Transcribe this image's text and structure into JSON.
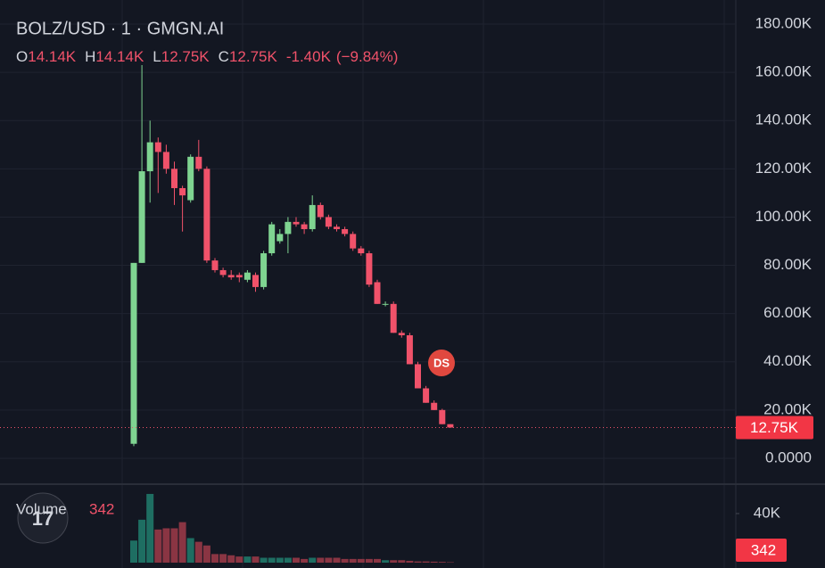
{
  "chart_data": {
    "type": "candlestick",
    "title": "BOLZ/USD · 1 · GMGN.AI",
    "ohlc_legend": [
      {
        "key": "O",
        "value": "14.14K"
      },
      {
        "key": "H",
        "value": "14.14K"
      },
      {
        "key": "L",
        "value": "12.75K"
      },
      {
        "key": "C",
        "value": "12.75K"
      }
    ],
    "change": "-1.40K",
    "change_percent": "(−9.84%)",
    "up_color": "#7fd491",
    "down_color": "#f0526a",
    "open": [
      6000,
      81000,
      119000,
      131000,
      127000,
      120000,
      112000,
      107000,
      125000,
      120000,
      82000,
      78000,
      76000,
      76000,
      74000,
      76000,
      71000,
      85000,
      90000,
      93000,
      98000,
      97000,
      95000,
      105000,
      100000,
      96000,
      95000,
      93000,
      87000,
      85000,
      73000,
      64000,
      64000,
      52000,
      51000,
      39000,
      29000,
      23000,
      20000,
      14140
    ],
    "high": [
      81000,
      163000,
      140000,
      133000,
      130000,
      123000,
      113000,
      126000,
      132000,
      121000,
      83000,
      79000,
      78000,
      77000,
      78000,
      77000,
      86000,
      98000,
      95000,
      100000,
      100000,
      98000,
      109000,
      106000,
      101000,
      97000,
      96000,
      94000,
      88000,
      86000,
      74000,
      65000,
      65000,
      53000,
      52000,
      40000,
      30000,
      24000,
      20500,
      14140
    ],
    "low": [
      5000,
      81000,
      106000,
      110000,
      118000,
      105000,
      94000,
      106000,
      119000,
      81000,
      77000,
      75000,
      74000,
      73000,
      73000,
      69000,
      70000,
      84000,
      89000,
      85000,
      96000,
      93000,
      94000,
      99000,
      95000,
      94000,
      92000,
      86000,
      84000,
      71000,
      64000,
      63000,
      52000,
      50000,
      39000,
      29000,
      23000,
      20000,
      14140,
      12750
    ],
    "close": [
      81000,
      119000,
      131000,
      127000,
      120000,
      112000,
      109000,
      125000,
      120000,
      82000,
      78000,
      76000,
      75000,
      75000,
      77000,
      71000,
      85000,
      97000,
      93000,
      98000,
      97000,
      95000,
      105000,
      100000,
      96000,
      95000,
      93000,
      87000,
      85000,
      72000,
      64000,
      64000,
      52000,
      51000,
      39000,
      29000,
      23000,
      20000,
      14140,
      12750
    ],
    "ylim": [
      -10000,
      190000
    ],
    "yticks": [
      {
        "value": 0,
        "label": "0.0000"
      },
      {
        "value": 20000,
        "label": "20.00K"
      },
      {
        "value": 40000,
        "label": "40.00K"
      },
      {
        "value": 60000,
        "label": "60.00K"
      },
      {
        "value": 80000,
        "label": "80.00K"
      },
      {
        "value": 100000,
        "label": "100.00K"
      },
      {
        "value": 120000,
        "label": "120.00K"
      },
      {
        "value": 140000,
        "label": "140.00K"
      },
      {
        "value": 160000,
        "label": "160.00K"
      },
      {
        "value": 180000,
        "label": "180.00K"
      }
    ],
    "last_price": {
      "value": 12750,
      "label": "12.75K"
    },
    "volume": {
      "name": "Volume",
      "values": [
        18000,
        35000,
        56000,
        27000,
        28000,
        28000,
        33000,
        20000,
        17000,
        14000,
        7000,
        7000,
        6000,
        5000,
        5000,
        5000,
        4000,
        4000,
        4000,
        4000,
        4000,
        3000,
        4000,
        4000,
        4000,
        4000,
        3000,
        3000,
        3000,
        3000,
        3000,
        2000,
        2000,
        2000,
        1500,
        1000,
        1000,
        800,
        600,
        342
      ],
      "up_color": "#1e6e62",
      "down_color": "#8a3543",
      "ylim": [
        0,
        62500
      ],
      "yticks": [
        {
          "value": 40000,
          "label": "40K"
        }
      ]
    },
    "grid": true
  }
}
